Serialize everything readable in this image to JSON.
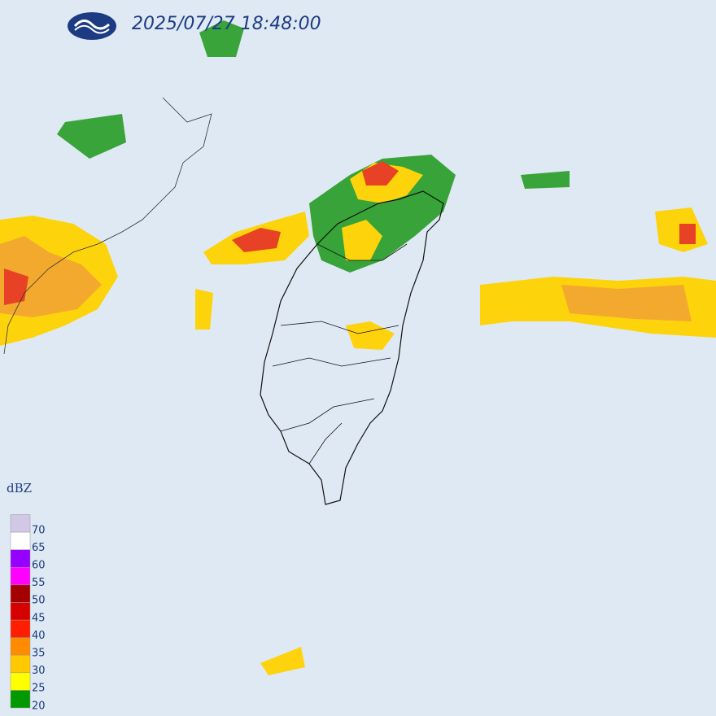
{
  "header": {
    "timestamp": "2025/07/27 18:48:00"
  },
  "legend": {
    "unit": "dBZ",
    "levels": [
      {
        "value": 20,
        "color": "#009900"
      },
      {
        "value": 25,
        "color": "#ffff00"
      },
      {
        "value": 30,
        "color": "#ffc800"
      },
      {
        "value": 35,
        "color": "#ff8c00"
      },
      {
        "value": 40,
        "color": "#ff1e00"
      },
      {
        "value": 45,
        "color": "#d70000"
      },
      {
        "value": 50,
        "color": "#a50000"
      },
      {
        "value": 55,
        "color": "#ff00ff"
      },
      {
        "value": 60,
        "color": "#9600ff"
      },
      {
        "value": 65,
        "color": "#ffffff"
      },
      {
        "value": 70,
        "color": "#d2c8e6"
      }
    ]
  }
}
